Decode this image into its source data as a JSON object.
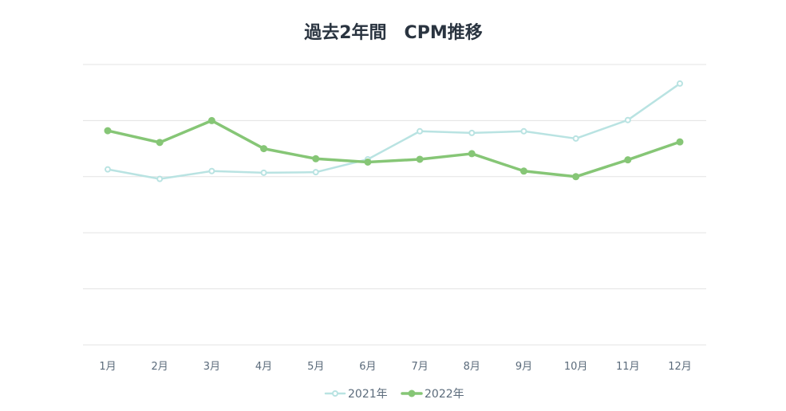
{
  "chart_data": {
    "type": "line",
    "title": "過去2年間　CPM推移",
    "xlabel": "",
    "ylabel": "",
    "categories": [
      "1月",
      "2月",
      "3月",
      "4月",
      "5月",
      "6月",
      "7月",
      "8月",
      "9月",
      "10月",
      "11月",
      "12月"
    ],
    "ylim": [
      0,
      5
    ],
    "grid": true,
    "legend_position": "bottom",
    "series": [
      {
        "name": "2021年",
        "color": "#b9e3e2",
        "values": [
          3.13,
          2.96,
          3.1,
          3.07,
          3.08,
          3.31,
          3.81,
          3.78,
          3.81,
          3.68,
          4.01,
          4.66
        ]
      },
      {
        "name": "2022年",
        "color": "#86c676",
        "values": [
          3.82,
          3.61,
          4.0,
          3.5,
          3.32,
          3.26,
          3.31,
          3.41,
          3.1,
          3.0,
          3.3,
          3.62
        ]
      }
    ]
  }
}
